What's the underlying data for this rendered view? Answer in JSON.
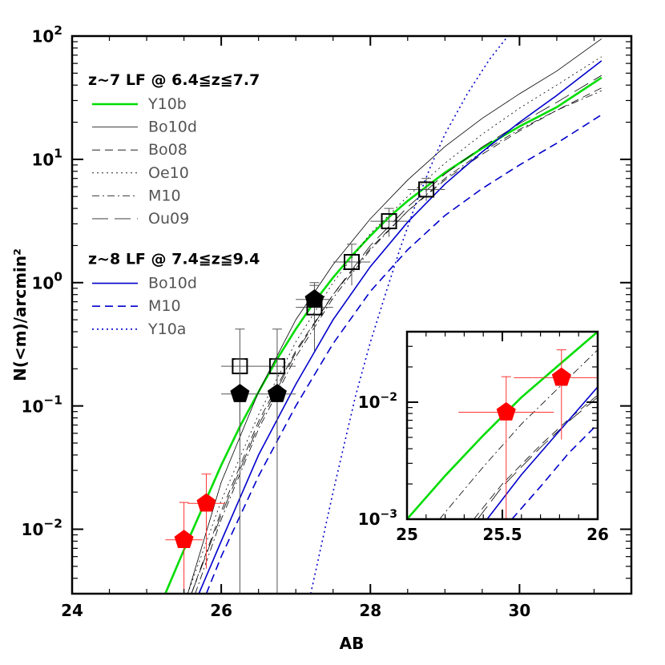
{
  "colors": {
    "green": "#00dd00",
    "blue": "#0000cc",
    "black": "#000000",
    "gray": "#555555",
    "red": "#ff0000"
  },
  "chart_data": [
    {
      "type": "line",
      "scale_y": "log",
      "xlabel": "AB",
      "ylabel": "N(<m)/arcmin²",
      "xlim": [
        24,
        31.5
      ],
      "ylim": [
        0.003,
        100
      ],
      "xticks": [
        24,
        26,
        28,
        30
      ],
      "xtick_labels": [
        "24",
        "26",
        "28",
        "30"
      ],
      "yticks": [
        0.01,
        0.1,
        1,
        10,
        100
      ],
      "ytick_labels": [
        {
          "base": "10",
          "exp": "−2"
        },
        {
          "base": "10",
          "exp": "−1"
        },
        {
          "base": "10",
          "exp": "0"
        },
        {
          "base": "10",
          "exp": "1"
        },
        {
          "base": "10",
          "exp": "2"
        }
      ],
      "legend": {
        "placement": "upper-left",
        "groups": [
          {
            "title": "z~7 LF @ 6.4≦z≦7.7",
            "entries": [
              {
                "label": "Y10b",
                "color": "#00dd00",
                "dash": "solid",
                "width": 2.6
              },
              {
                "label": "Bo10d",
                "color": "#000000",
                "dash": "solid",
                "width": 0.8
              },
              {
                "label": "Bo08",
                "color": "#000000",
                "dash": "dashed",
                "width": 0.8
              },
              {
                "label": "Oe10",
                "color": "#000000",
                "dash": "dotted",
                "width": 0.8
              },
              {
                "label": "M10",
                "color": "#000000",
                "dash": "dashdot",
                "width": 0.8
              },
              {
                "label": "Ou09",
                "color": "#000000",
                "dash": "longdash",
                "width": 0.8
              }
            ]
          },
          {
            "title": "z~8 LF @ 7.4≦z≦9.4",
            "entries": [
              {
                "label": "Bo10d",
                "color": "#0000cc",
                "dash": "solid",
                "width": 1.6
              },
              {
                "label": "M10",
                "color": "#0000cc",
                "dash": "dashed",
                "width": 1.6
              },
              {
                "label": "Y10a",
                "color": "#0000cc",
                "dash": "dotted",
                "width": 1.6
              }
            ]
          }
        ]
      },
      "series": [
        {
          "name": "Y10b",
          "group": "z~7",
          "color": "#00dd00",
          "dash": "solid",
          "width": 2.6,
          "x": [
            25.25,
            25.5,
            25.75,
            26.0,
            26.25,
            26.5,
            26.75,
            27.0,
            27.25,
            27.5,
            27.75,
            28.0,
            28.25,
            28.5,
            28.75,
            29.0,
            29.5,
            30.0,
            30.5,
            31.1
          ],
          "y": [
            0.003,
            0.0068,
            0.015,
            0.033,
            0.068,
            0.13,
            0.24,
            0.42,
            0.7,
            1.1,
            1.65,
            2.4,
            3.4,
            4.6,
            6.0,
            7.8,
            12.3,
            18.5,
            26.5,
            46
          ]
        },
        {
          "name": "Bo10d",
          "group": "z~7",
          "color": "#000000",
          "dash": "solid",
          "width": 0.8,
          "x": [
            25.55,
            26.0,
            26.5,
            27.0,
            27.5,
            28.0,
            28.5,
            29.0,
            29.5,
            30.0,
            30.5,
            31.1
          ],
          "y": [
            0.003,
            0.024,
            0.13,
            0.5,
            1.4,
            3.3,
            6.8,
            12.7,
            21.5,
            34,
            52,
            95
          ]
        },
        {
          "name": "Bo08",
          "group": "z~7",
          "color": "#000000",
          "dash": "dashed",
          "width": 0.8,
          "x": [
            25.6,
            26.0,
            26.5,
            27.0,
            27.5,
            28.0,
            28.5,
            29.0,
            29.5,
            30.0,
            30.5,
            31.1
          ],
          "y": [
            0.003,
            0.014,
            0.075,
            0.28,
            0.8,
            1.9,
            3.8,
            6.8,
            11,
            17,
            25,
            38
          ]
        },
        {
          "name": "Oe10",
          "group": "z~7",
          "color": "#000000",
          "dash": "dotted",
          "width": 0.8,
          "x": [
            25.55,
            26.0,
            26.5,
            27.0,
            27.5,
            28.0,
            28.5,
            29.0,
            29.5,
            30.0,
            30.5,
            31.1
          ],
          "y": [
            0.003,
            0.017,
            0.085,
            0.33,
            1.0,
            2.5,
            5.0,
            9.3,
            16,
            26,
            40,
            68
          ]
        },
        {
          "name": "M10",
          "group": "z~7",
          "color": "#000000",
          "dash": "dashdot",
          "width": 0.8,
          "x": [
            25.65,
            26.0,
            26.5,
            27.0,
            27.5,
            28.0,
            28.5,
            29.0,
            29.5,
            30.0,
            30.5,
            31.1
          ],
          "y": [
            0.003,
            0.012,
            0.065,
            0.25,
            0.75,
            1.85,
            3.8,
            7.0,
            11.5,
            17.5,
            25,
            36
          ]
        },
        {
          "name": "Ou09",
          "group": "z~7",
          "color": "#000000",
          "dash": "longdash",
          "width": 0.8,
          "x": [
            25.6,
            26.0,
            26.5,
            27.0,
            27.5,
            28.0,
            28.5,
            29.0,
            29.5,
            30.0,
            30.5,
            31.1
          ],
          "y": [
            0.003,
            0.013,
            0.07,
            0.27,
            0.8,
            2.0,
            4.1,
            7.6,
            12.6,
            19.5,
            29,
            48
          ]
        },
        {
          "name": "Bo10d",
          "group": "z~8",
          "color": "#0000cc",
          "dash": "solid",
          "width": 1.6,
          "x": [
            25.7,
            26.0,
            26.5,
            27.0,
            27.5,
            28.0,
            28.5,
            29.0,
            29.5,
            30.0,
            30.5,
            31.1
          ],
          "y": [
            0.003,
            0.008,
            0.04,
            0.15,
            0.5,
            1.35,
            3.1,
            6.3,
            11.5,
            20,
            33,
            63
          ]
        },
        {
          "name": "M10",
          "group": "z~8",
          "color": "#0000cc",
          "dash": "dashed",
          "width": 1.6,
          "x": [
            25.8,
            26.0,
            26.5,
            27.0,
            27.5,
            28.0,
            28.5,
            29.0,
            29.5,
            30.0,
            30.5,
            31.1
          ],
          "y": [
            0.003,
            0.006,
            0.027,
            0.1,
            0.32,
            0.85,
            1.85,
            3.5,
            5.8,
            9.0,
            13.5,
            23
          ]
        },
        {
          "name": "Y10a",
          "group": "z~8",
          "color": "#0000cc",
          "dash": "dotted",
          "width": 1.6,
          "x": [
            27.2,
            27.5,
            27.8,
            28.0,
            28.2,
            28.4,
            28.6,
            28.8,
            29.0,
            29.3,
            29.6,
            29.9,
            30.1
          ],
          "y": [
            0.003,
            0.02,
            0.12,
            0.33,
            0.8,
            1.9,
            4.2,
            8.5,
            16,
            34,
            65,
            110,
            150
          ]
        }
      ],
      "points": [
        {
          "kind": "square",
          "color": "#000000",
          "x": 26.25,
          "y": 0.21,
          "xerr": 0.25,
          "yerr_low": 0.003,
          "yerr_high": 0.42
        },
        {
          "kind": "square",
          "color": "#000000",
          "x": 26.75,
          "y": 0.21,
          "xerr": 0.25,
          "yerr_low": 0.003,
          "yerr_high": 0.42
        },
        {
          "kind": "square",
          "color": "#000000",
          "x": 27.25,
          "y": 0.63,
          "xerr": 0.25,
          "yerr_low": 0.28,
          "yerr_high": 1.0
        },
        {
          "kind": "square",
          "color": "#000000",
          "x": 27.75,
          "y": 1.47,
          "xerr": 0.25,
          "yerr_low": 0.95,
          "yerr_high": 2.05
        },
        {
          "kind": "square",
          "color": "#000000",
          "x": 28.25,
          "y": 3.15,
          "xerr": 0.25,
          "yerr_low": 2.35,
          "yerr_high": 4.0
        },
        {
          "kind": "square",
          "color": "#000000",
          "x": 28.75,
          "y": 5.7,
          "xerr": 0.25,
          "yerr_low": 4.6,
          "yerr_high": 7.0
        },
        {
          "kind": "pentagon",
          "color": "#000000",
          "x": 26.25,
          "y": 0.125,
          "xerr": 0.25,
          "yerr_low": 0.052,
          "yerr_high": 0.24
        },
        {
          "kind": "pentagon",
          "color": "#000000",
          "x": 26.75,
          "y": 0.125,
          "xerr": 0.25,
          "yerr_low": 0.052,
          "yerr_high": 0.24
        },
        {
          "kind": "pentagon",
          "color": "#000000",
          "x": 27.25,
          "y": 0.73,
          "xerr": 0.25,
          "yerr_low": 0.55,
          "yerr_high": 0.95
        },
        {
          "kind": "pentagon",
          "color": "#ff0000",
          "x": 25.5,
          "y": 0.0082,
          "xerr": 0.25,
          "yerr_low": 0.003,
          "yerr_high": 0.0165
        },
        {
          "kind": "pentagon",
          "color": "#ff0000",
          "x": 25.8,
          "y": 0.0162,
          "xerr": 0.25,
          "yerr_low": 0.0048,
          "yerr_high": 0.028
        }
      ]
    },
    {
      "type": "line",
      "scale_y": "log",
      "inset": true,
      "xlim": [
        25,
        26
      ],
      "ylim": [
        0.001,
        0.04
      ],
      "xticks": [
        25,
        25.5,
        26
      ],
      "xtick_labels": [
        "25",
        "25.5",
        "26"
      ],
      "yticks": [
        0.001,
        0.01
      ],
      "ytick_labels": [
        {
          "base": "10",
          "exp": "−3"
        },
        {
          "base": "10",
          "exp": "−2"
        }
      ],
      "series": [
        {
          "color": "#00dd00",
          "dash": "solid",
          "width": 2.6,
          "x": [
            25.0,
            25.2,
            25.4,
            25.6,
            25.8,
            26.0
          ],
          "y": [
            0.001,
            0.00235,
            0.0052,
            0.011,
            0.021,
            0.04
          ]
        },
        {
          "color": "#000000",
          "dash": "dashdot",
          "width": 0.8,
          "x": [
            25.17,
            25.4,
            25.6,
            25.8,
            26.0
          ],
          "y": [
            0.001,
            0.0028,
            0.0065,
            0.0135,
            0.028
          ]
        },
        {
          "color": "#000000",
          "dash": "dashed",
          "width": 0.8,
          "x": [
            25.35,
            25.5,
            25.7,
            25.85,
            26.0
          ],
          "y": [
            0.001,
            0.002,
            0.0043,
            0.0072,
            0.0115
          ]
        },
        {
          "color": "#000000",
          "dash": "longdash",
          "width": 0.8,
          "x": [
            25.37,
            25.5,
            25.7,
            25.85,
            26.0
          ],
          "y": [
            0.001,
            0.0019,
            0.0041,
            0.0069,
            0.011
          ]
        },
        {
          "color": "#0000cc",
          "dash": "solid",
          "width": 1.6,
          "x": [
            25.42,
            25.6,
            25.8,
            26.0
          ],
          "y": [
            0.001,
            0.0024,
            0.0057,
            0.0135
          ]
        },
        {
          "color": "#0000cc",
          "dash": "dashed",
          "width": 1.6,
          "x": [
            25.55,
            25.7,
            25.85,
            26.0
          ],
          "y": [
            0.001,
            0.0019,
            0.0037,
            0.0065
          ]
        }
      ],
      "points": [
        {
          "kind": "pentagon",
          "color": "#ff0000",
          "x": 25.52,
          "y": 0.0082,
          "xerr": 0.25,
          "yerr_low": 0.001,
          "yerr_high": 0.0165
        },
        {
          "kind": "pentagon",
          "color": "#ff0000",
          "x": 25.81,
          "y": 0.0162,
          "xerr": 0.25,
          "yerr_low": 0.0048,
          "yerr_high": 0.028
        }
      ]
    }
  ]
}
